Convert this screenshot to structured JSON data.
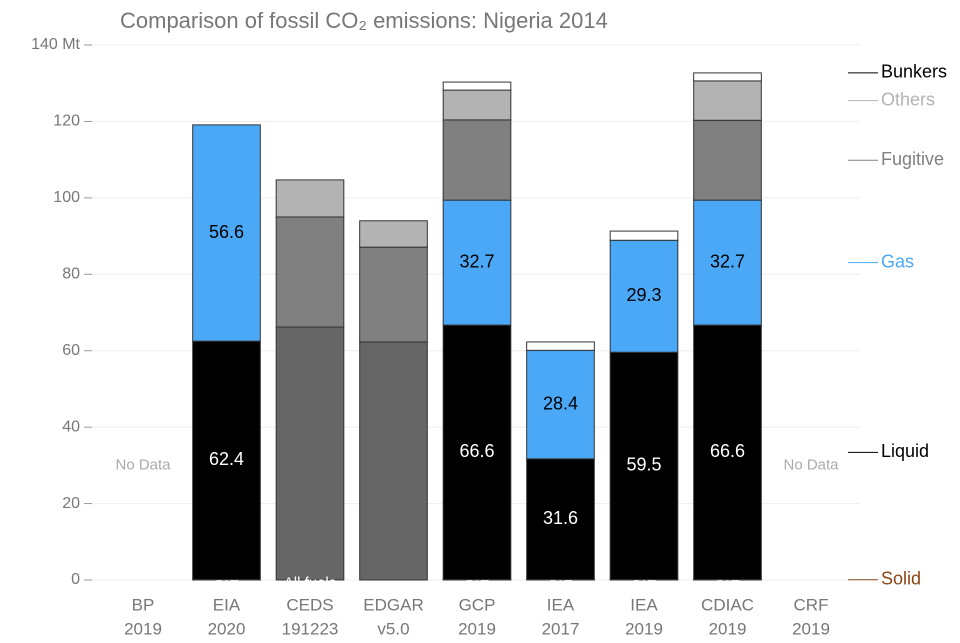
{
  "chart_data": {
    "type": "stacked_bar",
    "title": "Comparison of fossil CO₂ emissions: Nigeria 2014",
    "no_data_label": "No Data",
    "categories": [
      [
        "BP",
        "2019"
      ],
      [
        "EIA",
        "2020"
      ],
      [
        "CEDS",
        "191223"
      ],
      [
        "EDGAR",
        "v5.0"
      ],
      [
        "GCP",
        "2019"
      ],
      [
        "IEA",
        "2017"
      ],
      [
        "IEA",
        "2019"
      ],
      [
        "CDIAC",
        "2019"
      ],
      [
        "CRF",
        "2019"
      ]
    ],
    "series": [
      {
        "name": "Solid",
        "color": "#8b4513",
        "labeled": true,
        "label_color": "#ffffff",
        "values": [
          null,
          0.1,
          null,
          null,
          0.1,
          0.1,
          0.1,
          0.1,
          null
        ]
      },
      {
        "name": "Liquid",
        "color": "#000000",
        "labeled": true,
        "label_color": "#ffffff",
        "values": [
          null,
          62.4,
          null,
          null,
          66.6,
          31.6,
          59.5,
          66.6,
          null
        ]
      },
      {
        "name": "All fuels",
        "color": "#666666",
        "in_legend": false,
        "name_in_bar": true,
        "label_color": "#ffffff",
        "values": [
          null,
          null,
          66.2,
          62.3,
          null,
          null,
          null,
          null,
          null
        ]
      },
      {
        "name": "Gas",
        "color": "#4aa8f7",
        "labeled": true,
        "label_color": "#000000",
        "values": [
          null,
          56.6,
          null,
          null,
          32.7,
          28.4,
          29.3,
          32.7,
          null
        ]
      },
      {
        "name": "Fugitive",
        "color": "#808080",
        "values": [
          null,
          null,
          28.8,
          24.8,
          21.0,
          null,
          null,
          20.9,
          null
        ]
      },
      {
        "name": "Others",
        "color": "#b3b3b3",
        "values": [
          null,
          null,
          9.7,
          6.9,
          7.8,
          null,
          null,
          10.3,
          null
        ]
      },
      {
        "name": "Bunkers",
        "color": "#ffffff",
        "values": [
          null,
          null,
          null,
          null,
          2.1,
          2.2,
          2.4,
          2.1,
          null
        ]
      }
    ],
    "ylim": [
      0,
      140
    ],
    "yticks": [
      0,
      20,
      40,
      60,
      80,
      100,
      120,
      {
        "value": 140,
        "label": "140 Mt"
      }
    ],
    "grid": true
  }
}
